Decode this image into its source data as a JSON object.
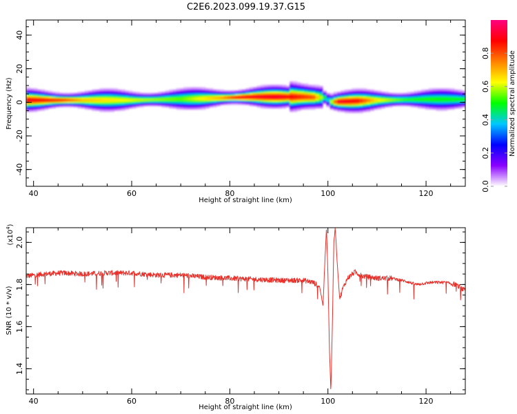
{
  "title": "C2E6.2023.099.19.37.G15",
  "colors": {
    "snr_line": "#e8302a",
    "background": "#ffffff",
    "frame": "#000000"
  },
  "chart_data": [
    {
      "type": "heatmap",
      "xlabel": "Height of straight line (km)",
      "ylabel": "Frequency (Hz)",
      "xlim": [
        38.5,
        128
      ],
      "ylim": [
        -50,
        49
      ],
      "x_ticks": [
        "40",
        "60",
        "80",
        "100",
        "120"
      ],
      "y_ticks": [
        "40",
        "20",
        "0",
        "-20",
        "-40"
      ],
      "colorbar": {
        "label": "Normalized spectral amplitude",
        "range": [
          0,
          1
        ],
        "ticks": [
          "0.0",
          "0.2",
          "0.4",
          "0.6",
          "0.8"
        ],
        "colors": [
          "#ffffff",
          "#8a00ff",
          "#0000ff",
          "#00c8ff",
          "#00ff00",
          "#ffff00",
          "#ff8000",
          "#ff0000",
          "#ff0080"
        ]
      },
      "ridge_center_hz": [
        {
          "x": 39,
          "y": 1.5
        },
        {
          "x": 60,
          "y": 1.5
        },
        {
          "x": 75,
          "y": 2.5
        },
        {
          "x": 85,
          "y": 3.5
        },
        {
          "x": 95,
          "y": 3.5
        },
        {
          "x": 99.5,
          "y": 3.0
        },
        {
          "x": 100.5,
          "y": 0.5
        },
        {
          "x": 104,
          "y": 0.8
        },
        {
          "x": 110,
          "y": 1.5
        },
        {
          "x": 120,
          "y": 2.0
        },
        {
          "x": 128,
          "y": 2.0
        }
      ],
      "peak_amplitude": [
        {
          "x": 39,
          "a": 0.9
        },
        {
          "x": 46,
          "a": 0.85
        },
        {
          "x": 50,
          "a": 0.7
        },
        {
          "x": 60,
          "a": 0.62
        },
        {
          "x": 70,
          "a": 0.55
        },
        {
          "x": 78,
          "a": 0.72
        },
        {
          "x": 82,
          "a": 0.9
        },
        {
          "x": 90,
          "a": 0.92
        },
        {
          "x": 97,
          "a": 0.8
        },
        {
          "x": 100,
          "a": 0.4
        },
        {
          "x": 102,
          "a": 0.92
        },
        {
          "x": 106,
          "a": 0.88
        },
        {
          "x": 110,
          "a": 0.65
        },
        {
          "x": 116,
          "a": 0.52
        },
        {
          "x": 128,
          "a": 0.5
        }
      ]
    },
    {
      "type": "line",
      "xlabel": "Height of straight line (km)",
      "ylabel": "SNR (10 * v/v)",
      "ylabel_multiplier": "(x10",
      "ylabel_multiplier_exp": "4",
      "ylabel_multiplier_close": ")",
      "xlim": [
        38.5,
        128
      ],
      "ylim": [
        1.28,
        2.07
      ],
      "x_ticks": [
        "40",
        "60",
        "80",
        "100",
        "120"
      ],
      "y_ticks": [
        "1.4",
        "1.6",
        "1.8",
        "2.0"
      ],
      "series": [
        {
          "points": [
            {
              "x": 38.5,
              "y": 1.84
            },
            {
              "x": 42,
              "y": 1.85
            },
            {
              "x": 46,
              "y": 1.855
            },
            {
              "x": 50,
              "y": 1.85
            },
            {
              "x": 55,
              "y": 1.855
            },
            {
              "x": 60,
              "y": 1.855
            },
            {
              "x": 65,
              "y": 1.845
            },
            {
              "x": 70,
              "y": 1.845
            },
            {
              "x": 75,
              "y": 1.835
            },
            {
              "x": 80,
              "y": 1.83
            },
            {
              "x": 85,
              "y": 1.825
            },
            {
              "x": 90,
              "y": 1.82
            },
            {
              "x": 95,
              "y": 1.82
            },
            {
              "x": 97,
              "y": 1.81
            },
            {
              "x": 98.3,
              "y": 1.79
            },
            {
              "x": 99.0,
              "y": 1.7
            },
            {
              "x": 99.4,
              "y": 1.92
            },
            {
              "x": 99.7,
              "y": 2.07
            },
            {
              "x": 100.0,
              "y": 1.85
            },
            {
              "x": 100.3,
              "y": 1.5
            },
            {
              "x": 100.6,
              "y": 1.29
            },
            {
              "x": 100.9,
              "y": 1.6
            },
            {
              "x": 101.2,
              "y": 2.0
            },
            {
              "x": 101.5,
              "y": 2.07
            },
            {
              "x": 101.9,
              "y": 1.9
            },
            {
              "x": 102.4,
              "y": 1.73
            },
            {
              "x": 103,
              "y": 1.78
            },
            {
              "x": 104,
              "y": 1.83
            },
            {
              "x": 105.5,
              "y": 1.86
            },
            {
              "x": 107,
              "y": 1.84
            },
            {
              "x": 110,
              "y": 1.83
            },
            {
              "x": 113,
              "y": 1.83
            },
            {
              "x": 116,
              "y": 1.815
            },
            {
              "x": 118,
              "y": 1.8
            },
            {
              "x": 121,
              "y": 1.81
            },
            {
              "x": 124,
              "y": 1.81
            },
            {
              "x": 126,
              "y": 1.8
            },
            {
              "x": 128,
              "y": 1.77
            }
          ]
        }
      ]
    }
  ]
}
